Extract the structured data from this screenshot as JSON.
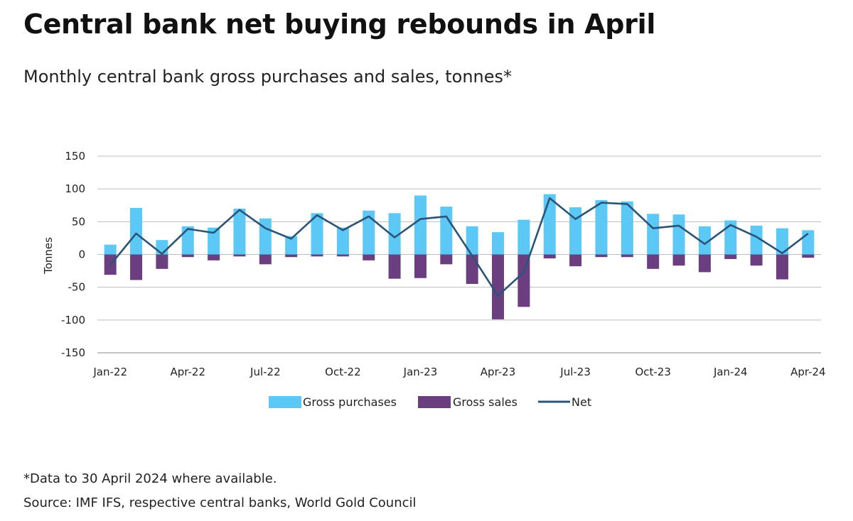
{
  "header": {
    "title": "Central bank net buying rebounds in April",
    "subtitle": "Monthly central bank gross purchases and sales, tonnes*"
  },
  "footer": {
    "note": "*Data to 30 April 2024 where available.",
    "source": "Source: IMF IFS, respective central banks, World Gold Council"
  },
  "colors": {
    "purchases": "#5bc8f5",
    "sales": "#6b3f7f",
    "net": "#2a5478",
    "grid": "#bdbdbd"
  },
  "chart_data": {
    "type": "bar",
    "title": "Central bank net buying rebounds in April",
    "ylabel": "Tonnes",
    "ylim": [
      -150,
      150
    ],
    "yticks": [
      150,
      100,
      50,
      0,
      -50,
      -100,
      -150
    ],
    "grid": true,
    "legend_position": "bottom",
    "categories": [
      "Jan-22",
      "Feb-22",
      "Mar-22",
      "Apr-22",
      "May-22",
      "Jun-22",
      "Jul-22",
      "Aug-22",
      "Sep-22",
      "Oct-22",
      "Nov-22",
      "Dec-22",
      "Jan-23",
      "Feb-23",
      "Mar-23",
      "Apr-23",
      "May-23",
      "Jun-23",
      "Jul-23",
      "Aug-23",
      "Sep-23",
      "Oct-23",
      "Nov-23",
      "Dec-23",
      "Jan-24",
      "Feb-24",
      "Mar-24",
      "Apr-24"
    ],
    "tick_labels": [
      "Jan-22",
      "Apr-22",
      "Jul-22",
      "Oct-22",
      "Jan-23",
      "Apr-23",
      "Jul-23",
      "Oct-23",
      "Jan-24",
      "Apr-24"
    ],
    "tick_indices": [
      0,
      3,
      6,
      9,
      12,
      15,
      18,
      21,
      24,
      27
    ],
    "series": [
      {
        "name": "Gross purchases",
        "type": "bar",
        "values": [
          15,
          71,
          22,
          43,
          41,
          70,
          55,
          28,
          63,
          41,
          67,
          63,
          90,
          73,
          43,
          34,
          53,
          92,
          72,
          83,
          81,
          62,
          61,
          43,
          52,
          44,
          40,
          37
        ]
      },
      {
        "name": "Gross sales",
        "type": "bar",
        "values": [
          -31,
          -39,
          -22,
          -4,
          -9,
          -3,
          -15,
          -4,
          -3,
          -3,
          -9,
          -37,
          -36,
          -15,
          -45,
          -99,
          -80,
          -6,
          -18,
          -4,
          -4,
          -22,
          -17,
          -27,
          -7,
          -17,
          -38,
          -5
        ]
      },
      {
        "name": "Net",
        "type": "line",
        "values": [
          -16,
          32,
          1,
          39,
          33,
          68,
          40,
          24,
          60,
          37,
          58,
          26,
          54,
          58,
          -2,
          -63,
          -27,
          86,
          54,
          79,
          77,
          40,
          44,
          16,
          45,
          27,
          2,
          32
        ]
      }
    ]
  }
}
